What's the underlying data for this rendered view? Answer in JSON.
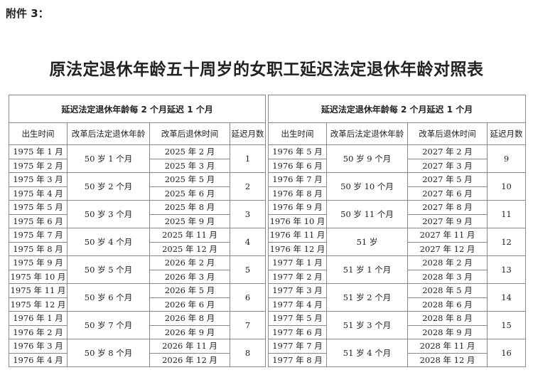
{
  "attachment_label": "附件 3：",
  "title": "原法定退休年龄五十周岁的女职工延迟法定退休年龄对照表",
  "tables": [
    {
      "caption": "延迟法定退休年龄每 2 个月延迟 1 个月",
      "headers": [
        "出生时间",
        "改革后法定退休年龄",
        "改革后退休时间",
        "延迟月数"
      ],
      "groups": [
        {
          "births": [
            "1975 年 1 月",
            "1975 年 2 月"
          ],
          "age": "50 岁 1 个月",
          "retire": [
            "2025 年 2 月",
            "2025 年 3 月"
          ],
          "delay": "1"
        },
        {
          "births": [
            "1975 年 3 月",
            "1975 年 4 月"
          ],
          "age": "50 岁 2 个月",
          "retire": [
            "2025 年 5 月",
            "2025 年 6 月"
          ],
          "delay": "2"
        },
        {
          "births": [
            "1975 年 5 月",
            "1975 年 6 月"
          ],
          "age": "50 岁 3 个月",
          "retire": [
            "2025 年 8 月",
            "2025 年 9 月"
          ],
          "delay": "3"
        },
        {
          "births": [
            "1975 年 7 月",
            "1975 年 8 月"
          ],
          "age": "50 岁 4 个月",
          "retire": [
            "2025 年 11 月",
            "2025 年 12 月"
          ],
          "delay": "4"
        },
        {
          "births": [
            "1975 年 9 月",
            "1975 年 10 月"
          ],
          "age": "50 岁 5 个月",
          "retire": [
            "2026 年 2 月",
            "2026 年 3 月"
          ],
          "delay": "5"
        },
        {
          "births": [
            "1975 年 11 月",
            "1975 年 12 月"
          ],
          "age": "50 岁 6 个月",
          "retire": [
            "2026 年 5 月",
            "2026 年 6 月"
          ],
          "delay": "6"
        },
        {
          "births": [
            "1976 年 1 月",
            "1976 年 2 月"
          ],
          "age": "50 岁 7 个月",
          "retire": [
            "2026 年 8 月",
            "2026 年 9 月"
          ],
          "delay": "7"
        },
        {
          "births": [
            "1976 年 3 月",
            "1976 年 4 月"
          ],
          "age": "50 岁 8 个月",
          "retire": [
            "2026 年 11 月",
            "2026 年 12 月"
          ],
          "delay": "8"
        }
      ]
    },
    {
      "caption": "延迟法定退休年龄每 2 个月延迟 1 个月",
      "headers": [
        "出生时间",
        "改革后法定退休年龄",
        "改革后退休时间",
        "延迟月数"
      ],
      "groups": [
        {
          "births": [
            "1976 年 5 月",
            "1976 年 6 月"
          ],
          "age": "50 岁 9 个月",
          "retire": [
            "2027 年 2 月",
            "2027 年 3 月"
          ],
          "delay": "9"
        },
        {
          "births": [
            "1976 年 7 月",
            "1976 年 8 月"
          ],
          "age": "50 岁 10 个月",
          "retire": [
            "2027 年 5 月",
            "2027 年 6 月"
          ],
          "delay": "10"
        },
        {
          "births": [
            "1976 年 9 月",
            "1976 年 10 月"
          ],
          "age": "50 岁 11 个月",
          "retire": [
            "2027 年 8 月",
            "2027 年 9 月"
          ],
          "delay": "11"
        },
        {
          "births": [
            "1976 年 11 月",
            "1976 年 12 月"
          ],
          "age": "51 岁",
          "retire": [
            "2027 年 11 月",
            "2027 年 12 月"
          ],
          "delay": "12"
        },
        {
          "births": [
            "1977 年 1 月",
            "1977 年 2 月"
          ],
          "age": "51 岁 1 个月",
          "retire": [
            "2028 年 2 月",
            "2028 年 3 月"
          ],
          "delay": "13"
        },
        {
          "births": [
            "1977 年 3 月",
            "1977 年 4 月"
          ],
          "age": "51 岁 2 个月",
          "retire": [
            "2028 年 5 月",
            "2028 年 6 月"
          ],
          "delay": "14"
        },
        {
          "births": [
            "1977 年 5 月",
            "1977 年 6 月"
          ],
          "age": "51 岁 3 个月",
          "retire": [
            "2028 年 8 月",
            "2028 年 9 月"
          ],
          "delay": "15"
        },
        {
          "births": [
            "1977 年 7 月",
            "1977 年 8 月"
          ],
          "age": "51 岁 4 个月",
          "retire": [
            "2028 年 11 月",
            "2028 年 12 月"
          ],
          "delay": "16"
        }
      ]
    }
  ]
}
